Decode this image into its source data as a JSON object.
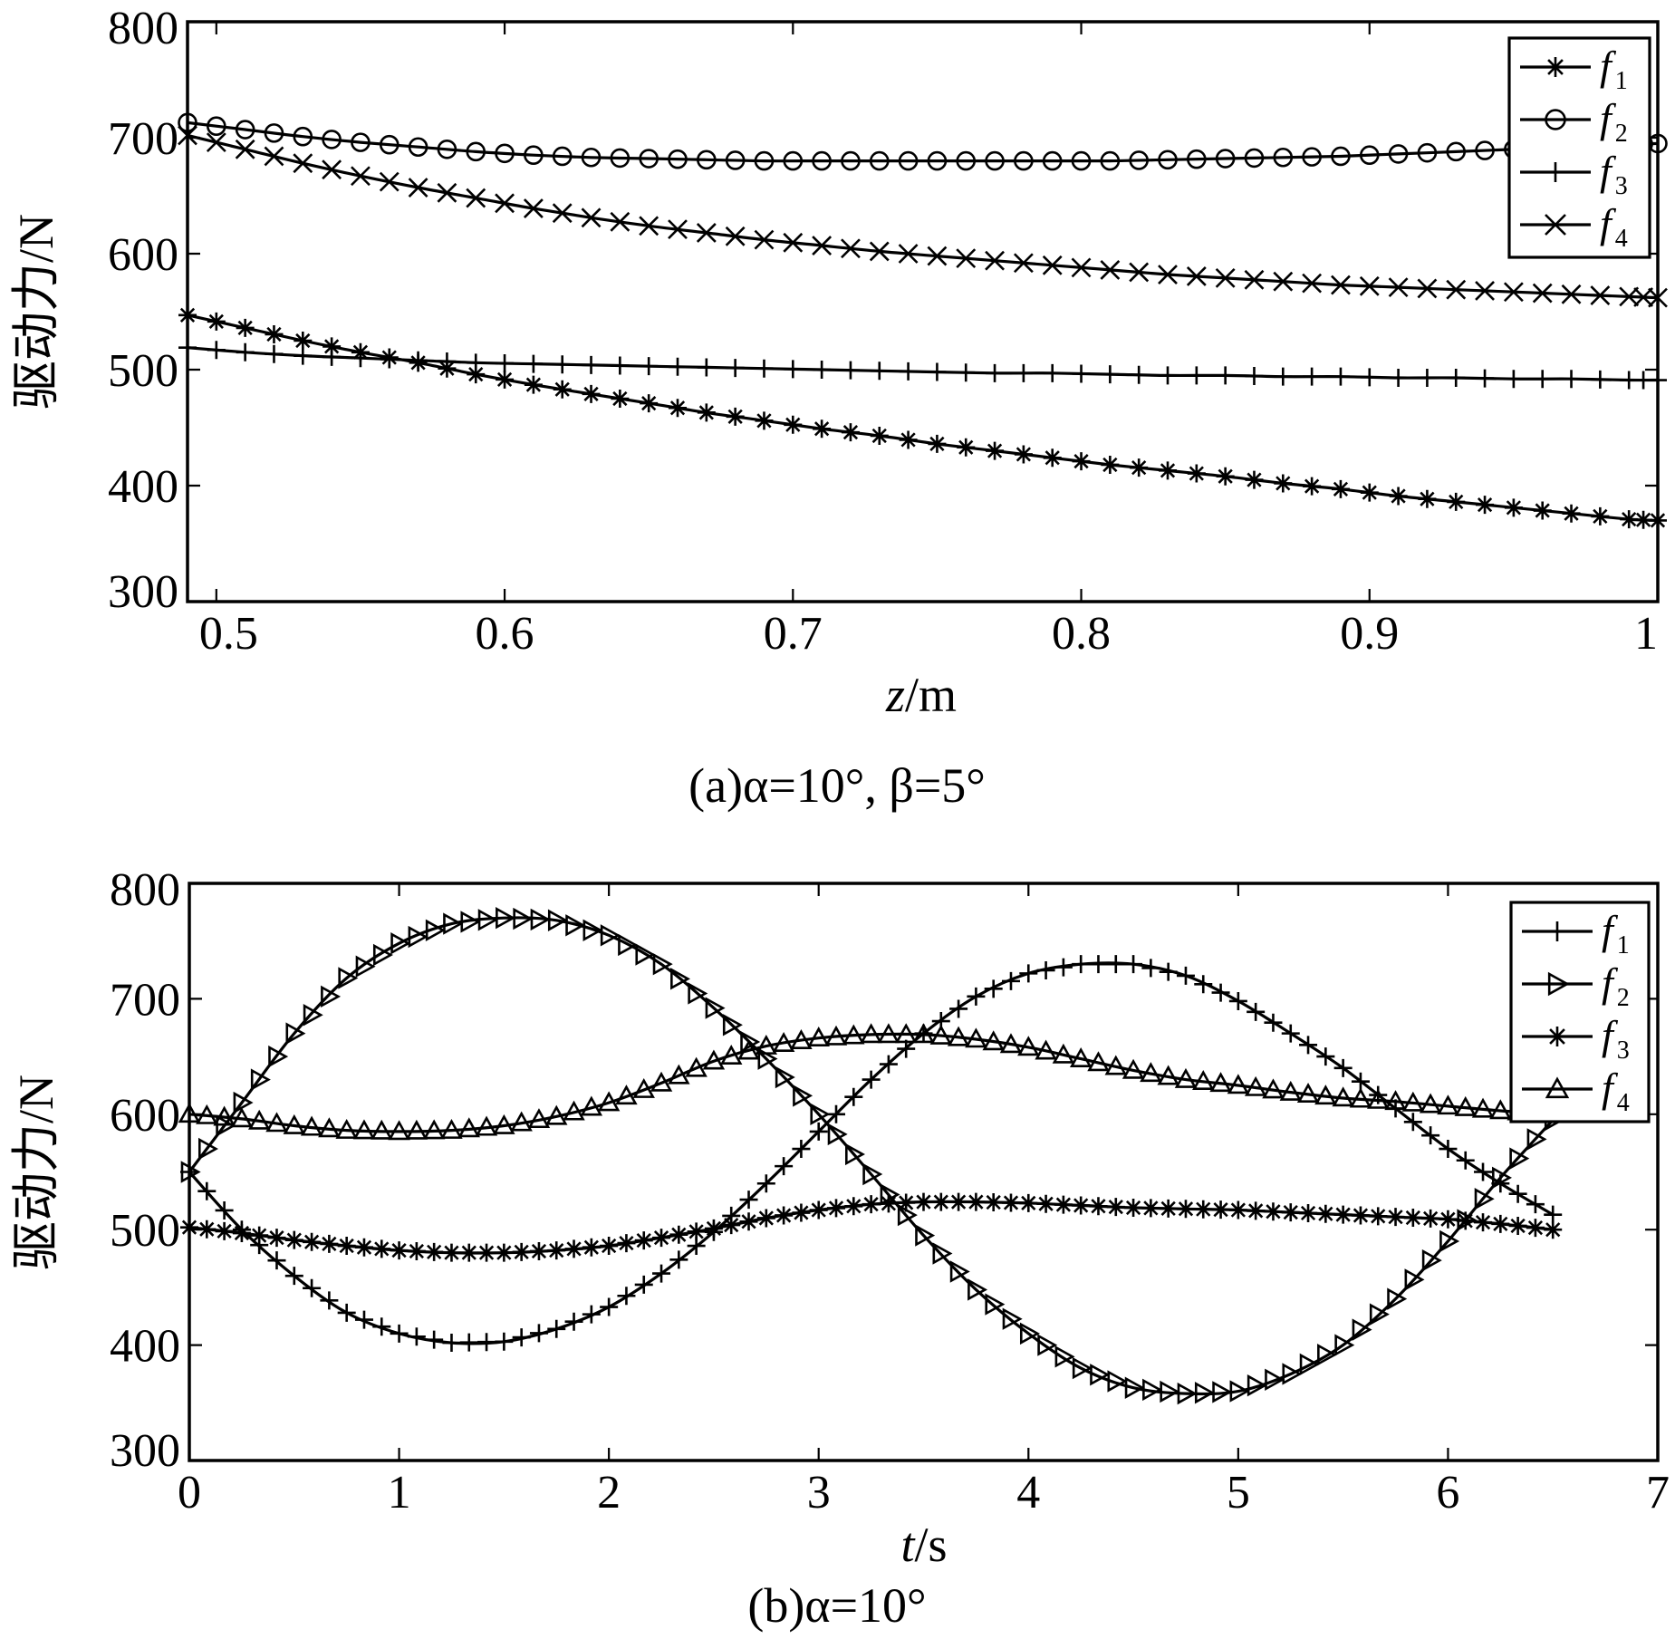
{
  "chart_data": [
    {
      "type": "line",
      "ylabel": "驱动力/N",
      "xlabel": "z/m",
      "xlabel_var": "z",
      "xlabel_unit": "/m",
      "caption": "(a)α=10°, β=5°",
      "xlim": [
        0.49,
        1.0
      ],
      "ylim": [
        300,
        800
      ],
      "xticks": [
        "0.5",
        "0.6",
        "0.7",
        "0.8",
        "0.9",
        "1"
      ],
      "xtick_values": [
        0.5,
        0.6,
        0.7,
        0.8,
        0.9,
        1.0
      ],
      "yticks": [
        "300",
        "400",
        "500",
        "600",
        "700",
        "800"
      ],
      "ytick_values": [
        300,
        400,
        500,
        600,
        700,
        800
      ],
      "grid": false,
      "legend_position": "top-right",
      "x": [
        0.49,
        0.51,
        0.53,
        0.55,
        0.57,
        0.59,
        0.61,
        0.63,
        0.65,
        0.67,
        0.69,
        0.71,
        0.73,
        0.75,
        0.77,
        0.79,
        0.81,
        0.83,
        0.85,
        0.87,
        0.89,
        0.91,
        0.93,
        0.95,
        0.97,
        0.99,
        1.0
      ],
      "series": [
        {
          "name": "f",
          "sub": "1",
          "marker": "asterisk",
          "values": [
            547,
            536,
            525,
            515,
            506,
            496,
            487,
            479,
            471,
            463,
            456,
            449,
            443,
            436,
            430,
            424,
            418,
            413,
            408,
            402,
            397,
            391,
            386,
            381,
            376,
            371,
            370
          ]
        },
        {
          "name": "f",
          "sub": "2",
          "marker": "circle",
          "values": [
            713,
            707,
            701,
            696,
            692,
            688,
            685,
            683,
            682,
            681,
            680,
            680,
            680,
            680,
            680,
            680,
            680,
            681,
            682,
            683,
            684,
            686,
            688,
            690,
            692,
            694,
            695
          ]
        },
        {
          "name": "f",
          "sub": "3",
          "marker": "plus",
          "values": [
            519,
            515,
            512,
            510,
            508,
            506,
            505,
            504,
            503,
            502,
            501,
            500,
            499,
            498,
            497,
            497,
            496,
            495,
            495,
            494,
            494,
            493,
            493,
            492,
            492,
            491,
            491
          ]
        },
        {
          "name": "f",
          "sub": "4",
          "marker": "x",
          "values": [
            702,
            690,
            678,
            667,
            657,
            648,
            639,
            631,
            624,
            618,
            612,
            607,
            602,
            598,
            594,
            590,
            586,
            582,
            579,
            576,
            573,
            571,
            569,
            567,
            565,
            563,
            562
          ]
        }
      ]
    },
    {
      "type": "line",
      "ylabel": "驱动力/N",
      "xlabel": "t/s",
      "xlabel_var": "t",
      "xlabel_unit": "/s",
      "caption": "(b)α=10°",
      "xlim": [
        0,
        7
      ],
      "ylim": [
        300,
        800
      ],
      "xticks": [
        "0",
        "1",
        "2",
        "3",
        "4",
        "5",
        "6",
        "7"
      ],
      "xtick_values": [
        0,
        1,
        2,
        3,
        4,
        5,
        6,
        7
      ],
      "yticks": [
        "300",
        "400",
        "500",
        "600",
        "700",
        "800"
      ],
      "ytick_values": [
        300,
        400,
        500,
        600,
        700,
        800
      ],
      "grid": false,
      "legend_position": "top-right",
      "x": [
        0,
        0.25,
        0.5,
        0.75,
        1.0,
        1.25,
        1.5,
        1.75,
        2.0,
        2.25,
        2.5,
        2.75,
        3.0,
        3.25,
        3.5,
        3.75,
        4.0,
        4.25,
        4.5,
        4.75,
        5.0,
        5.25,
        5.5,
        5.75,
        6.0,
        6.25,
        6.5
      ],
      "series": [
        {
          "name": "f",
          "sub": "1",
          "marker": "plus",
          "values": [
            550,
            500,
            460,
            428,
            410,
            402,
            403,
            414,
            433,
            462,
            498,
            540,
            585,
            630,
            670,
            702,
            722,
            730,
            730,
            720,
            698,
            670,
            640,
            605,
            570,
            540,
            513
          ]
        },
        {
          "name": "f",
          "sub": "2",
          "marker": "triangle-right",
          "values": [
            550,
            610,
            670,
            718,
            748,
            765,
            770,
            768,
            755,
            730,
            692,
            648,
            600,
            548,
            495,
            448,
            410,
            380,
            363,
            358,
            360,
            375,
            400,
            440,
            490,
            545,
            595
          ]
        },
        {
          "name": "f",
          "sub": "3",
          "marker": "asterisk",
          "values": [
            502,
            497,
            491,
            486,
            482,
            480,
            480,
            482,
            486,
            493,
            501,
            510,
            517,
            522,
            524,
            524,
            523,
            521,
            519,
            518,
            517,
            515,
            513,
            511,
            509,
            505,
            500
          ]
        },
        {
          "name": "f",
          "sub": "4",
          "marker": "triangle-up",
          "values": [
            600,
            596,
            590,
            586,
            585,
            586,
            590,
            598,
            610,
            627,
            646,
            659,
            666,
            669,
            669,
            665,
            658,
            648,
            638,
            630,
            625,
            619,
            614,
            611,
            607,
            603,
            600
          ]
        }
      ]
    }
  ]
}
